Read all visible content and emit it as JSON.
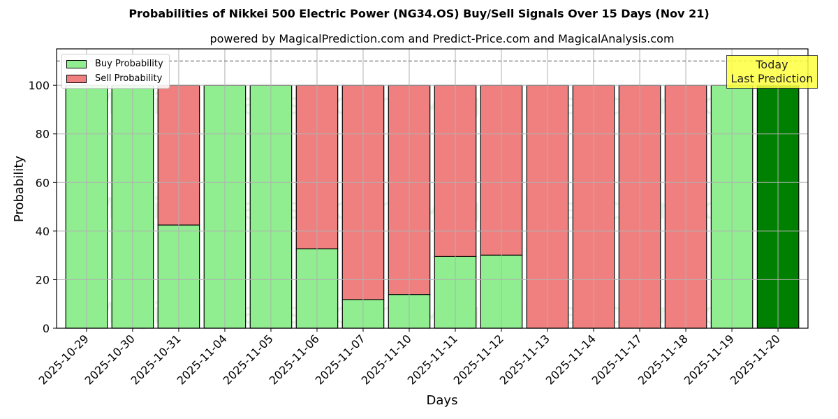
{
  "chart_data": {
    "type": "bar",
    "stacked": true,
    "title": "Probabilities of Nikkei 500 Electric Power (NG34.OS) Buy/Sell Signals Over 15 Days (Nov 21)",
    "subtitle": "powered by MagicalPrediction.com and Predict-Price.com and MagicalAnalysis.com",
    "xlabel": "Days",
    "ylabel": "Probability",
    "ylim": [
      0,
      115
    ],
    "yticks": [
      0,
      20,
      40,
      60,
      80,
      100
    ],
    "grid": true,
    "dashed_line_y": 110,
    "legend_position": "upper left",
    "categories": [
      "2025-10-29",
      "2025-10-30",
      "2025-10-31",
      "2025-11-04",
      "2025-11-05",
      "2025-11-06",
      "2025-11-07",
      "2025-11-10",
      "2025-11-11",
      "2025-11-12",
      "2025-11-13",
      "2025-11-14",
      "2025-11-17",
      "2025-11-18",
      "2025-11-19",
      "2025-11-20"
    ],
    "series": [
      {
        "name": "Buy Probability",
        "color": "#90ee90",
        "values": [
          100,
          100,
          42.5,
          100,
          100,
          32.7,
          11.8,
          13.9,
          29.5,
          30.1,
          0,
          0,
          0,
          0,
          100,
          100
        ]
      },
      {
        "name": "Sell Probability",
        "color": "#f08080",
        "values": [
          0,
          0,
          57.5,
          0,
          0,
          67.3,
          88.2,
          86.1,
          70.5,
          69.9,
          100,
          100,
          100,
          100,
          0,
          0
        ]
      }
    ],
    "highlight": {
      "index": 15,
      "color": "#008000",
      "label": "Today\nLast Prediction"
    },
    "watermarks": [
      "MagicalAnalysis.com",
      "MagicalPrediction.com"
    ]
  },
  "labels": {
    "title": "Probabilities of Nikkei 500 Electric Power (NG34.OS) Buy/Sell Signals Over 15 Days (Nov 21)",
    "subtitle": "powered by MagicalPrediction.com and Predict-Price.com and MagicalAnalysis.com",
    "xlabel": "Days",
    "ylabel": "Probability",
    "legend_buy": "Buy Probability",
    "legend_sell": "Sell Probability",
    "today_line1": "Today",
    "today_line2": "Last Prediction"
  }
}
